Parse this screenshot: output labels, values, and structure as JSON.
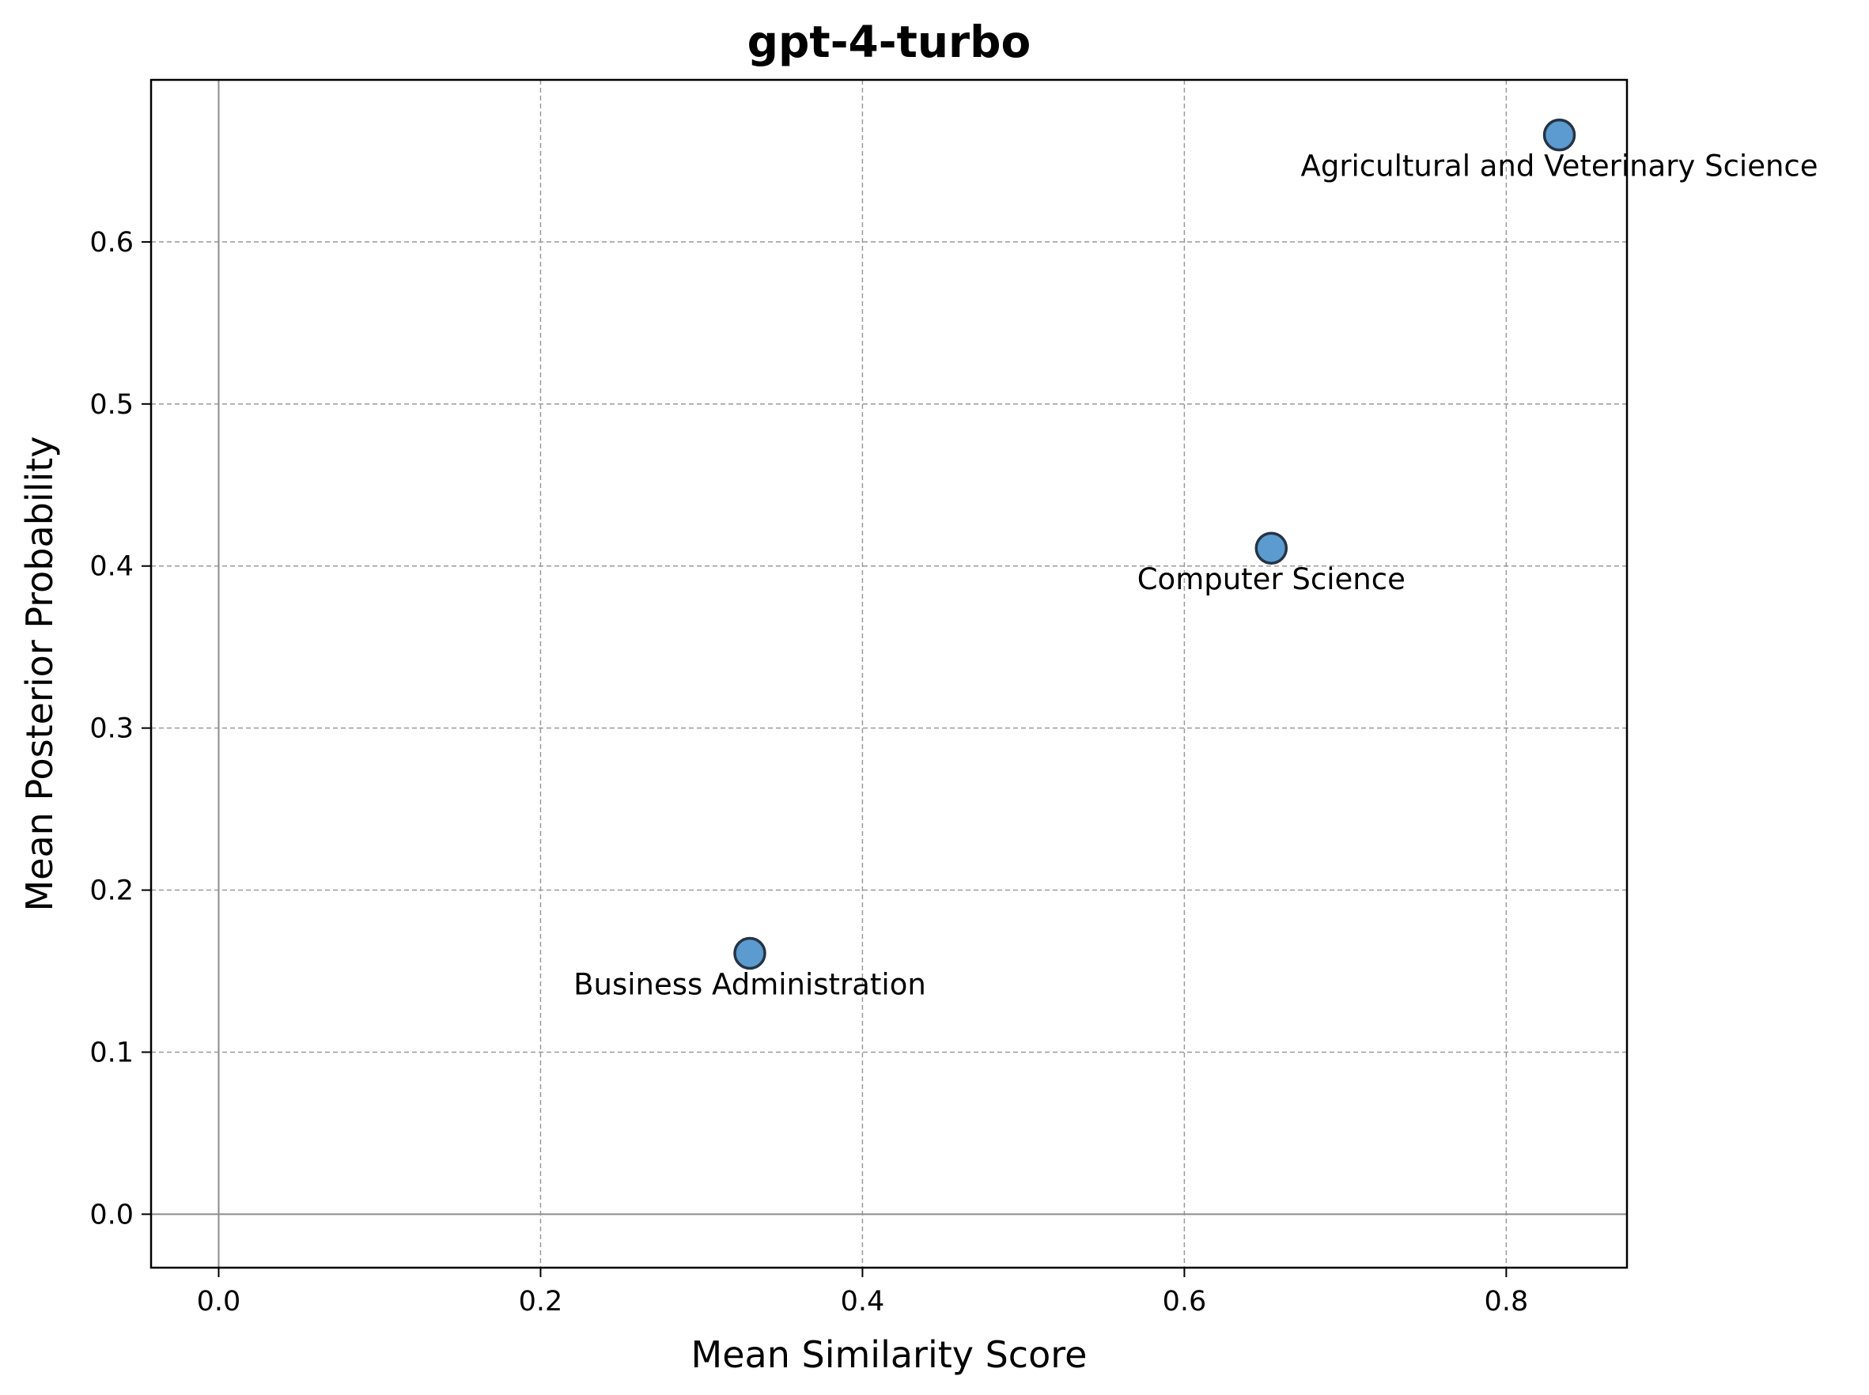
{
  "chart_data": {
    "type": "scatter",
    "title": "gpt-4-turbo",
    "xlabel": "Mean Similarity Score",
    "ylabel": "Mean Posterior Probability",
    "xlim": [
      -0.042,
      0.875
    ],
    "ylim": [
      -0.033,
      0.7
    ],
    "xticks": [
      0.0,
      0.2,
      0.4,
      0.6,
      0.8
    ],
    "xtick_labels": [
      "0.0",
      "0.2",
      "0.4",
      "0.6",
      "0.8"
    ],
    "yticks": [
      0.0,
      0.1,
      0.2,
      0.3,
      0.4,
      0.5,
      0.6
    ],
    "ytick_labels": [
      "0.0",
      "0.1",
      "0.2",
      "0.3",
      "0.4",
      "0.5",
      "0.6"
    ],
    "grid": true,
    "reference_lines": {
      "x": 0,
      "y": 0
    },
    "points": [
      {
        "label": "Business Administration",
        "x": 0.33,
        "y": 0.161
      },
      {
        "label": "Computer Science",
        "x": 0.654,
        "y": 0.411
      },
      {
        "label": "Agricultural and Veterinary Science",
        "x": 0.833,
        "y": 0.666
      }
    ],
    "colors": {
      "marker_fill": "#5b9bd0",
      "marker_edge": "#263445",
      "grid": "#9a9a9a",
      "reference": "#8c8c8c"
    }
  }
}
